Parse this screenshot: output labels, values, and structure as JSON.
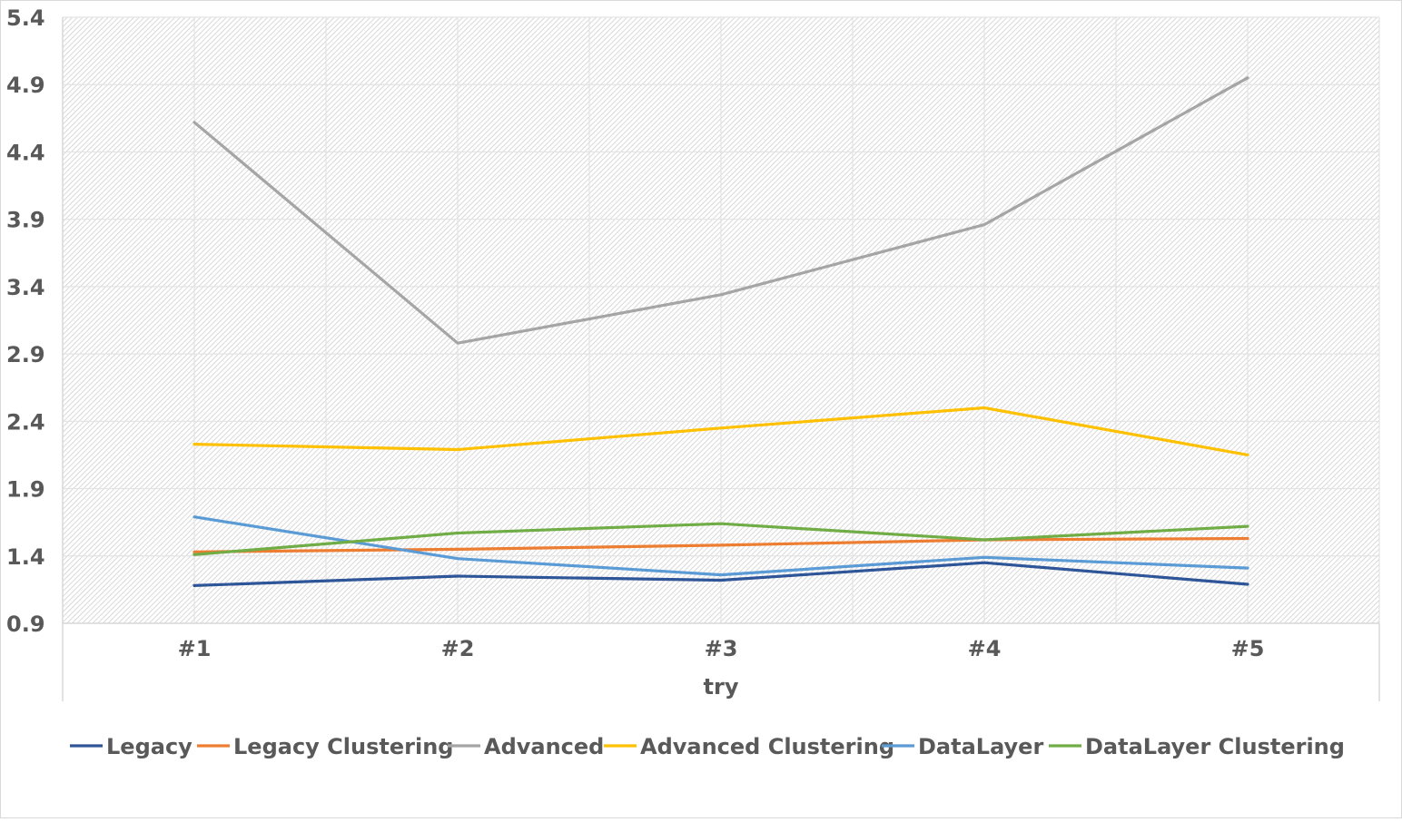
{
  "chart_data": {
    "type": "line",
    "title": "",
    "xlabel": "try",
    "ylabel": "",
    "categories": [
      "#1",
      "#2",
      "#3",
      "#4",
      "#5"
    ],
    "ylim": [
      0.9,
      5.4
    ],
    "yticks": [
      "0.9",
      "1.4",
      "1.9",
      "2.4",
      "2.9",
      "3.4",
      "3.9",
      "4.4",
      "4.9",
      "5.4"
    ],
    "grid": true,
    "legend_position": "bottom",
    "series": [
      {
        "name": "Legacy",
        "color": "#2e5597",
        "values": [
          1.18,
          1.25,
          1.22,
          1.35,
          1.19
        ]
      },
      {
        "name": "Legacy Clustering",
        "color": "#ed7d31",
        "values": [
          1.43,
          1.45,
          1.48,
          1.52,
          1.53
        ]
      },
      {
        "name": "Advanced",
        "color": "#a5a5a5",
        "values": [
          4.62,
          2.98,
          3.34,
          3.86,
          4.95
        ]
      },
      {
        "name": "Advanced Clustering",
        "color": "#ffc000",
        "values": [
          2.23,
          2.19,
          2.35,
          2.5,
          2.15
        ]
      },
      {
        "name": "DataLayer",
        "color": "#5b9bd5",
        "values": [
          1.69,
          1.38,
          1.26,
          1.39,
          1.31
        ]
      },
      {
        "name": "DataLayer Clustering",
        "color": "#70ad47",
        "values": [
          1.41,
          1.57,
          1.64,
          1.52,
          1.62
        ]
      }
    ]
  }
}
